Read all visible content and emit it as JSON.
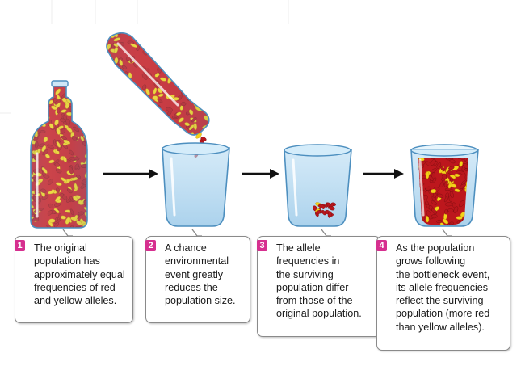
{
  "colors": {
    "step_badge": "#d62f8f",
    "red_allele": "#b8161c",
    "yellow_allele": "#f3d21b",
    "glass": "#a9d4ef",
    "arrow": "#111111"
  },
  "steps": [
    {
      "number": "1",
      "text": "The original\npopulation has\napproximately equal\nfrequencies of red\nand yellow alleles."
    },
    {
      "number": "2",
      "text": "A chance\nenvironmental\nevent greatly\nreduces the\npopulation size."
    },
    {
      "number": "3",
      "text": "The allele\nfrequencies in\nthe surviving\npopulation differ\nfrom those of the\noriginal population."
    },
    {
      "number": "4",
      "text": "As the population\ngrows following\nthe bottleneck event,\nits allele frequencies\nreflect the surviving\npopulation (more red\nthan yellow alleles)."
    }
  ],
  "icons": [
    "bottle-icon",
    "tilted-bottle-icon",
    "beaker-icon",
    "arrow-icon"
  ]
}
